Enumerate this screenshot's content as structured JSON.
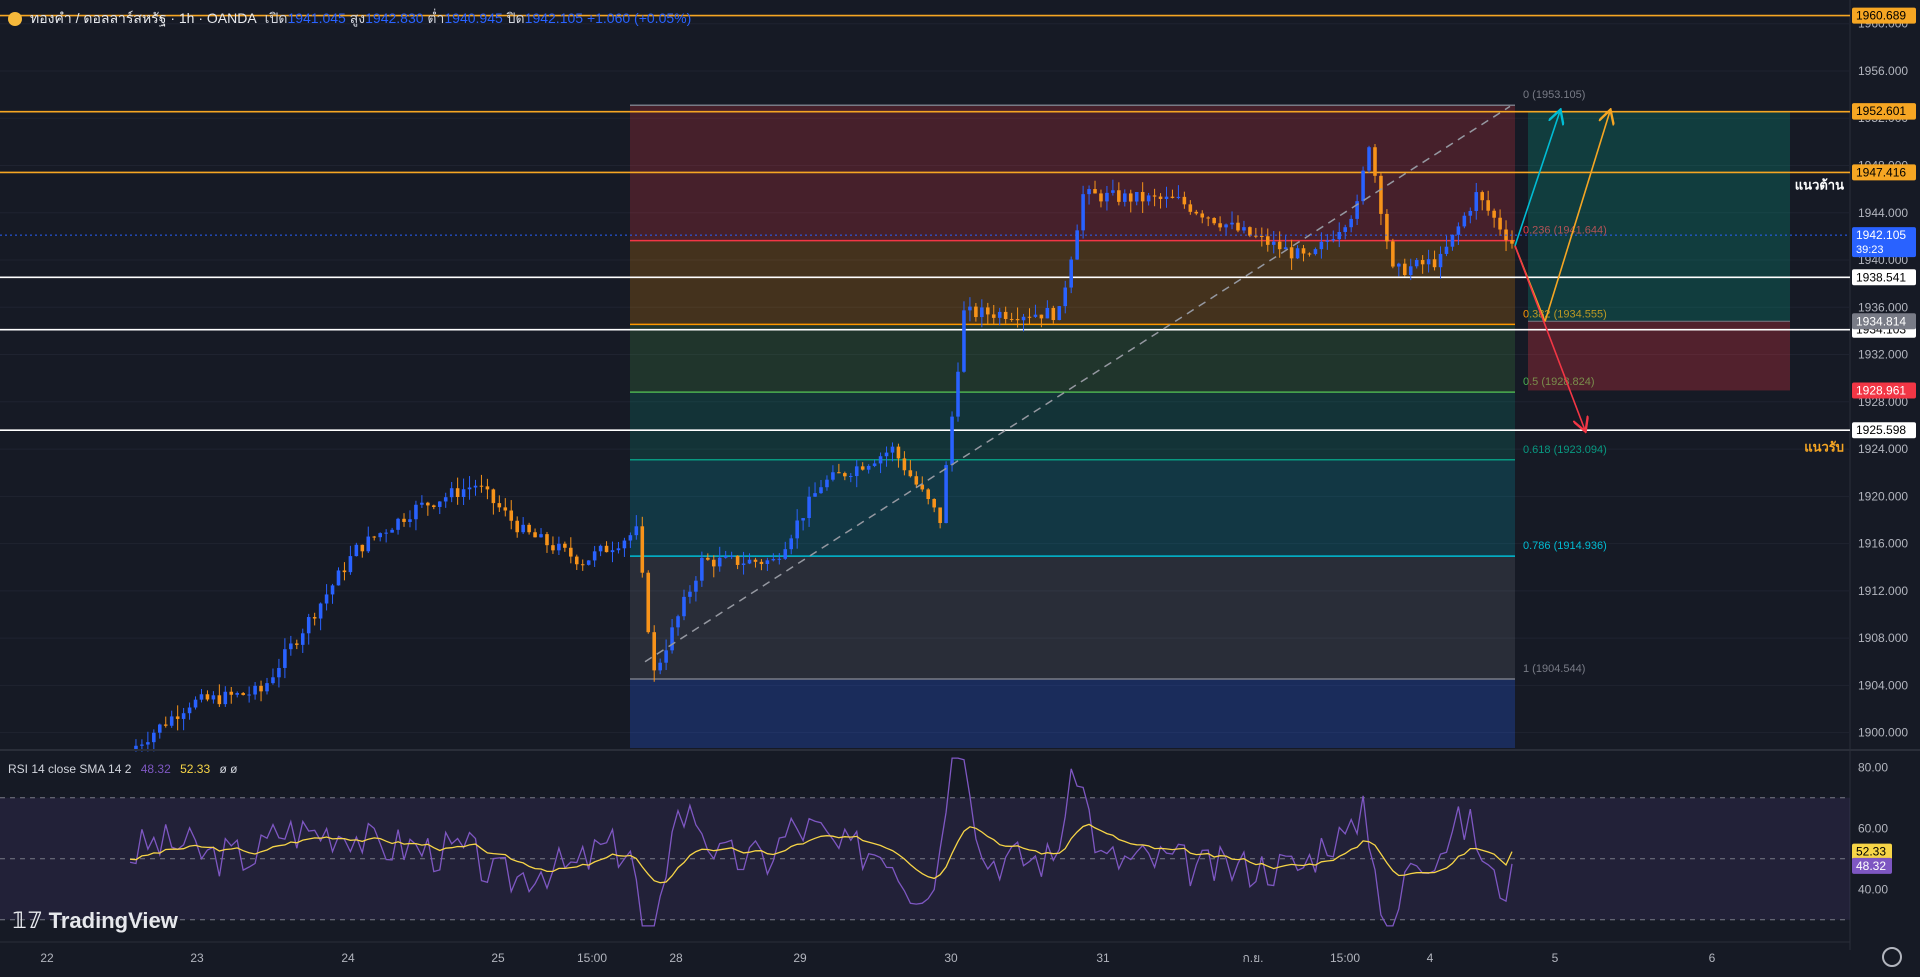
{
  "header": {
    "symbol": "ทองคำ / ดอลลาร์สหรัฐ · 1h · OANDA",
    "open_label": "เปิด",
    "open": "1941.045",
    "high_label": "สูง",
    "high": "1942.830",
    "low_label": "ต่ำ",
    "low": "1940.945",
    "close_label": "ปิด",
    "close": "1942.105",
    "change": "+1.060 (+0.05%)"
  },
  "colors": {
    "background": "#161a25",
    "bull": "#2962ff",
    "bear": "#f7931a",
    "resistance_line": "#f6a623",
    "support_line": "#ffffff"
  },
  "chart_data": {
    "type": "candlestick",
    "yaxis": {
      "ticks": [
        1900,
        1904,
        1908,
        1912,
        1916,
        1920,
        1924,
        1928,
        1932,
        1936,
        1940,
        1944,
        1948,
        1952,
        1956,
        1960
      ],
      "tick_labels": [
        "1900.000",
        "1904.000",
        "1908.000",
        "1912.000",
        "1916.000",
        "1920.000",
        "1924.000",
        "1928.000",
        "1932.000",
        "1936.000",
        "1940.000",
        "1944.000",
        "1948.000",
        "1952.000",
        "1956.000",
        "1960.000"
      ],
      "range": [
        1898.7,
        1961.5
      ]
    },
    "xaxis": {
      "labels": [
        "22",
        "23",
        "24",
        "25",
        "15:00",
        "28",
        "29",
        "30",
        "31",
        "ก.ย.",
        "15:00",
        "4",
        "5",
        "6"
      ]
    },
    "price_path_anchors": [
      {
        "t": 0,
        "p": 1898.5
      },
      {
        "t": 10,
        "p": 1902.5
      },
      {
        "t": 22,
        "p": 1903.5
      },
      {
        "t": 38,
        "p": 1915.5
      },
      {
        "t": 48,
        "p": 1919.0
      },
      {
        "t": 58,
        "p": 1921.0
      },
      {
        "t": 66,
        "p": 1917.0
      },
      {
        "t": 76,
        "p": 1914.5
      },
      {
        "t": 85,
        "p": 1917.0
      },
      {
        "t": 88,
        "p": 1905.0
      },
      {
        "t": 96,
        "p": 1914.5
      },
      {
        "t": 108,
        "p": 1914.5
      },
      {
        "t": 116,
        "p": 1921.0
      },
      {
        "t": 128,
        "p": 1924.0
      },
      {
        "t": 136,
        "p": 1918.0
      },
      {
        "t": 140,
        "p": 1935.5
      },
      {
        "t": 156,
        "p": 1935.5
      },
      {
        "t": 160,
        "p": 1945.5
      },
      {
        "t": 176,
        "p": 1945.0
      },
      {
        "t": 186,
        "p": 1942.5
      },
      {
        "t": 198,
        "p": 1940.0
      },
      {
        "t": 206,
        "p": 1944.5
      },
      {
        "t": 208,
        "p": 1950.0
      },
      {
        "t": 212,
        "p": 1939.0
      },
      {
        "t": 220,
        "p": 1940.0
      },
      {
        "t": 226,
        "p": 1945.5
      },
      {
        "t": 232,
        "p": 1941.5
      }
    ],
    "horizontal_levels": [
      {
        "price": 1960.689,
        "label": "1960.689",
        "color": "#f6a623"
      },
      {
        "price": 1952.556,
        "label": "1952.556",
        "color": "#f6a623"
      },
      {
        "price": 1947.416,
        "label": "1947.416",
        "color": "#f6a623"
      },
      {
        "price": 1938.541,
        "label": "1938.541",
        "color": "#ffffff"
      },
      {
        "price": 1934.103,
        "label": "1934.103",
        "color": "#ffffff"
      },
      {
        "price": 1925.598,
        "label": "1925.598",
        "color": "#ffffff"
      }
    ],
    "fibonacci": {
      "high": 1953.105,
      "low": 1904.544,
      "levels": [
        {
          "ratio": "0",
          "price": 1953.105,
          "label": "0 (1953.105)",
          "color": "#787b86"
        },
        {
          "ratio": "0.236",
          "price": 1941.644,
          "label": "0.236 (1941.644)",
          "color": "#f23645"
        },
        {
          "ratio": "0.382",
          "price": 1934.555,
          "label": "0.382 (1934.555)",
          "color": "#ff9800"
        },
        {
          "ratio": "0.5",
          "price": 1928.824,
          "label": "0.5 (1928.824)",
          "color": "#4caf50"
        },
        {
          "ratio": "0.618",
          "price": 1923.094,
          "label": "0.618 (1923.094)",
          "color": "#089981"
        },
        {
          "ratio": "0.786",
          "price": 1914.936,
          "label": "0.786 (1914.936)",
          "color": "#00bcd4"
        },
        {
          "ratio": "1",
          "price": 1904.544,
          "label": "1 (1904.544)",
          "color": "#787b86"
        }
      ]
    },
    "position_tool": {
      "entry": 1934.814,
      "target": 1952.601,
      "stop": 1928.961
    },
    "price_badges": [
      {
        "price": 1952.601,
        "label": "1952.601",
        "bg": "#f6a623",
        "fg": "#000000"
      },
      {
        "price": 1942.105,
        "label": "1942.105",
        "sub": "39:23",
        "bg": "#2962ff",
        "fg": "#ffffff"
      },
      {
        "price": 1934.814,
        "label": "1934.814",
        "bg": "#787b86",
        "fg": "#ffffff"
      },
      {
        "price": 1928.961,
        "label": "1928.961",
        "bg": "#f23645",
        "fg": "#ffffff"
      }
    ],
    "annotations": [
      {
        "text": "แนวต้าน",
        "price": 1946.4,
        "color": "#ffffff"
      },
      {
        "text": "แนวรับ",
        "price": 1924.2,
        "color": "#f6a623"
      }
    ],
    "rsi": {
      "header_label": "RSI 14 close SMA 14 2",
      "rsi_value": "48.32",
      "sma_value": "52.33",
      "extra": "ø ø",
      "ticks": [
        40,
        60,
        80
      ],
      "tick_labels": [
        "40.00",
        "60.00",
        "80.00"
      ],
      "overbought": 70,
      "middle": 50,
      "oversold": 30,
      "range": [
        25,
        85
      ],
      "rsi_color": "#7e57c2",
      "sma_color": "#f7d547"
    }
  },
  "watermark": "TradingView"
}
